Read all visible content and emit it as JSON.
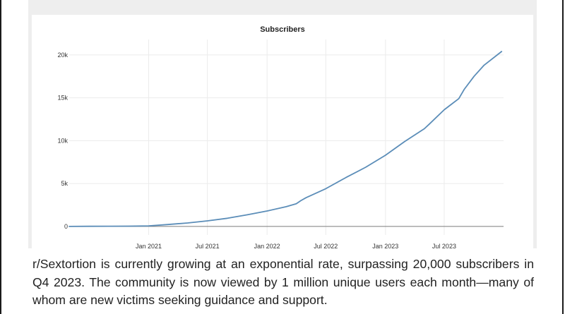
{
  "chart_data": {
    "type": "line",
    "title": "Subscribers",
    "xlabel": "",
    "ylabel": "",
    "x_range": [
      "2020-05-01",
      "2023-12-31"
    ],
    "ylim": [
      -1000,
      21800
    ],
    "y_ticks": [
      0,
      5000,
      10000,
      15000,
      20000
    ],
    "y_tick_labels": [
      "0",
      "5k",
      "10k",
      "15k",
      "20k"
    ],
    "x_ticks": [
      "2021-01-01",
      "2021-07-01",
      "2022-01-01",
      "2022-07-01",
      "2023-01-01",
      "2023-07-01"
    ],
    "x_tick_labels": [
      "Jan 2021",
      "Jul 2021",
      "Jan 2022",
      "Jul 2022",
      "Jan 2023",
      "Jul 2023"
    ],
    "grid": true,
    "line_color": "#5b8db8",
    "series": [
      {
        "name": "",
        "x": [
          "2020-05-01",
          "2020-07-01",
          "2020-09-01",
          "2020-11-01",
          "2021-01-01",
          "2021-03-01",
          "2021-05-01",
          "2021-07-01",
          "2021-09-01",
          "2021-11-01",
          "2022-01-01",
          "2022-03-01",
          "2022-04-01",
          "2022-04-15",
          "2022-05-01",
          "2022-07-01",
          "2022-09-01",
          "2022-11-01",
          "2023-01-01",
          "2023-03-01",
          "2023-05-01",
          "2023-05-15",
          "2023-07-01",
          "2023-08-15",
          "2023-09-01",
          "2023-10-01",
          "2023-11-01",
          "2023-12-25"
        ],
        "y": [
          0,
          10,
          20,
          30,
          60,
          220,
          400,
          650,
          950,
          1350,
          1800,
          2300,
          2650,
          3000,
          3350,
          4400,
          5700,
          6900,
          8300,
          9900,
          11400,
          11900,
          13600,
          14900,
          16000,
          17500,
          18800,
          20400
        ]
      }
    ]
  },
  "caption": {
    "text": "r/Sextortion is currently growing at an exponential rate, surpassing 20,000 subscribers in Q4 2023. The community is now viewed by 1 million unique users each month—many of whom are new victims seeking guidance and support."
  }
}
